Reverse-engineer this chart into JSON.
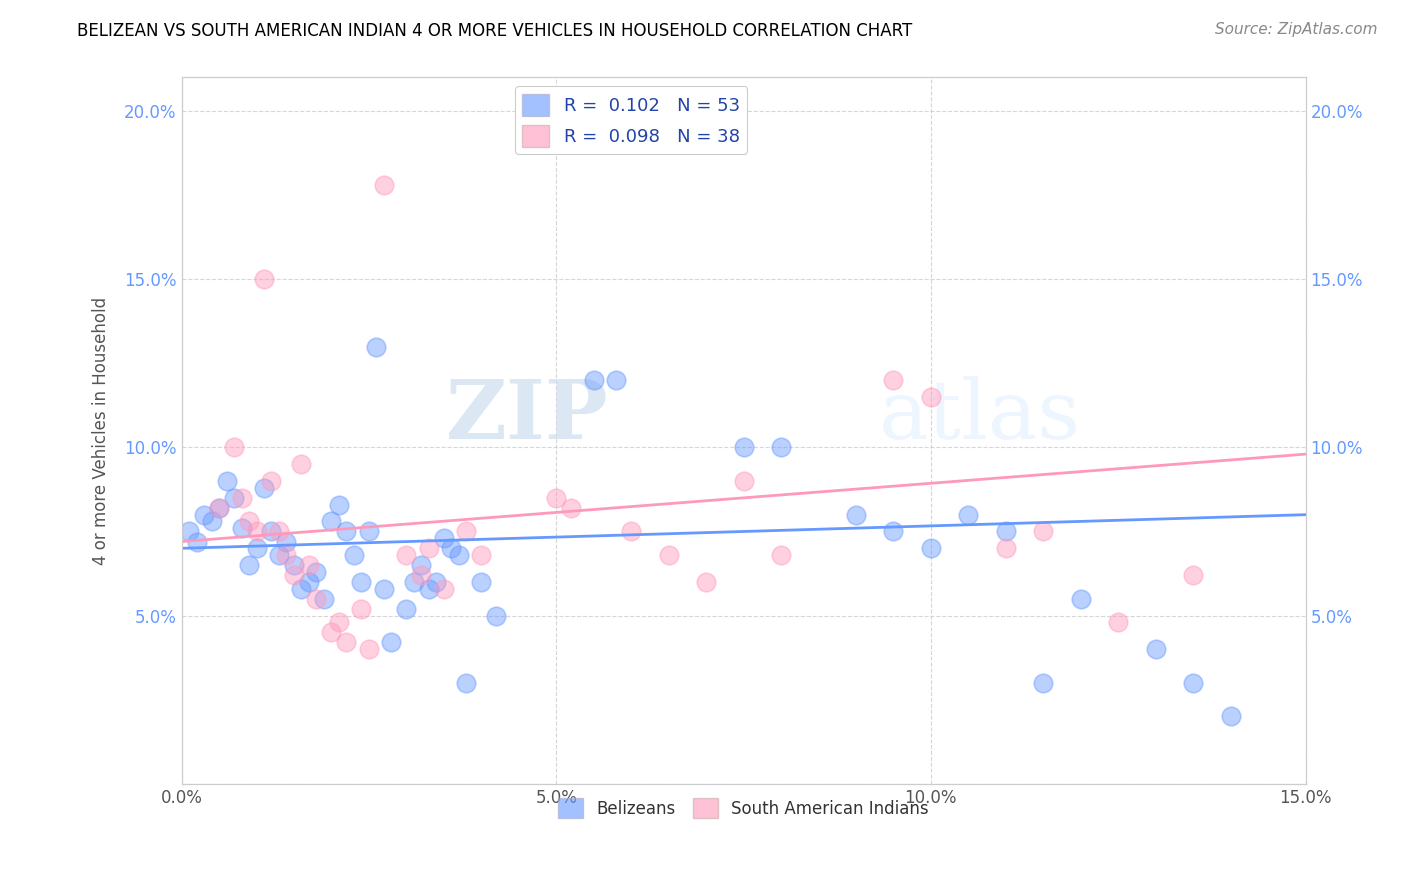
{
  "title": "BELIZEAN VS SOUTH AMERICAN INDIAN 4 OR MORE VEHICLES IN HOUSEHOLD CORRELATION CHART",
  "source": "Source: ZipAtlas.com",
  "ylabel": "4 or more Vehicles in Household",
  "xlim": [
    0.0,
    0.15
  ],
  "ylim": [
    0.0,
    0.21
  ],
  "xticks": [
    0.0,
    0.05,
    0.1,
    0.15
  ],
  "yticks": [
    0.0,
    0.05,
    0.1,
    0.15,
    0.2
  ],
  "xtick_labels": [
    "0.0%",
    "5.0%",
    "10.0%",
    "15.0%"
  ],
  "ytick_labels": [
    "",
    "5.0%",
    "10.0%",
    "15.0%",
    "20.0%"
  ],
  "belizean_color": "#6699ff",
  "south_american_color": "#ff99bb",
  "legend_label_1": "R =  0.102   N = 53",
  "legend_label_2": "R =  0.098   N = 38",
  "watermark_zip": "ZIP",
  "watermark_atlas": "atlas",
  "belizean_points": [
    [
      0.001,
      0.075
    ],
    [
      0.002,
      0.072
    ],
    [
      0.003,
      0.08
    ],
    [
      0.004,
      0.078
    ],
    [
      0.005,
      0.082
    ],
    [
      0.006,
      0.09
    ],
    [
      0.007,
      0.085
    ],
    [
      0.008,
      0.076
    ],
    [
      0.009,
      0.065
    ],
    [
      0.01,
      0.07
    ],
    [
      0.011,
      0.088
    ],
    [
      0.012,
      0.075
    ],
    [
      0.013,
      0.068
    ],
    [
      0.014,
      0.072
    ],
    [
      0.015,
      0.065
    ],
    [
      0.016,
      0.058
    ],
    [
      0.017,
      0.06
    ],
    [
      0.018,
      0.063
    ],
    [
      0.019,
      0.055
    ],
    [
      0.02,
      0.078
    ],
    [
      0.021,
      0.083
    ],
    [
      0.022,
      0.075
    ],
    [
      0.023,
      0.068
    ],
    [
      0.024,
      0.06
    ],
    [
      0.025,
      0.075
    ],
    [
      0.026,
      0.13
    ],
    [
      0.027,
      0.058
    ],
    [
      0.028,
      0.042
    ],
    [
      0.03,
      0.052
    ],
    [
      0.031,
      0.06
    ],
    [
      0.032,
      0.065
    ],
    [
      0.033,
      0.058
    ],
    [
      0.034,
      0.06
    ],
    [
      0.035,
      0.073
    ],
    [
      0.036,
      0.07
    ],
    [
      0.037,
      0.068
    ],
    [
      0.038,
      0.03
    ],
    [
      0.04,
      0.06
    ],
    [
      0.042,
      0.05
    ],
    [
      0.055,
      0.12
    ],
    [
      0.058,
      0.12
    ],
    [
      0.075,
      0.1
    ],
    [
      0.08,
      0.1
    ],
    [
      0.09,
      0.08
    ],
    [
      0.095,
      0.075
    ],
    [
      0.1,
      0.07
    ],
    [
      0.105,
      0.08
    ],
    [
      0.11,
      0.075
    ],
    [
      0.115,
      0.03
    ],
    [
      0.12,
      0.055
    ],
    [
      0.13,
      0.04
    ],
    [
      0.135,
      0.03
    ],
    [
      0.14,
      0.02
    ]
  ],
  "south_american_points": [
    [
      0.005,
      0.082
    ],
    [
      0.007,
      0.1
    ],
    [
      0.008,
      0.085
    ],
    [
      0.009,
      0.078
    ],
    [
      0.01,
      0.075
    ],
    [
      0.011,
      0.15
    ],
    [
      0.012,
      0.09
    ],
    [
      0.013,
      0.075
    ],
    [
      0.014,
      0.068
    ],
    [
      0.015,
      0.062
    ],
    [
      0.016,
      0.095
    ],
    [
      0.017,
      0.065
    ],
    [
      0.018,
      0.055
    ],
    [
      0.02,
      0.045
    ],
    [
      0.021,
      0.048
    ],
    [
      0.022,
      0.042
    ],
    [
      0.024,
      0.052
    ],
    [
      0.025,
      0.04
    ],
    [
      0.027,
      0.178
    ],
    [
      0.03,
      0.068
    ],
    [
      0.032,
      0.062
    ],
    [
      0.033,
      0.07
    ],
    [
      0.035,
      0.058
    ],
    [
      0.038,
      0.075
    ],
    [
      0.04,
      0.068
    ],
    [
      0.05,
      0.085
    ],
    [
      0.052,
      0.082
    ],
    [
      0.06,
      0.075
    ],
    [
      0.065,
      0.068
    ],
    [
      0.07,
      0.06
    ],
    [
      0.075,
      0.09
    ],
    [
      0.08,
      0.068
    ],
    [
      0.095,
      0.12
    ],
    [
      0.1,
      0.115
    ],
    [
      0.11,
      0.07
    ],
    [
      0.115,
      0.075
    ],
    [
      0.125,
      0.048
    ],
    [
      0.135,
      0.062
    ]
  ]
}
